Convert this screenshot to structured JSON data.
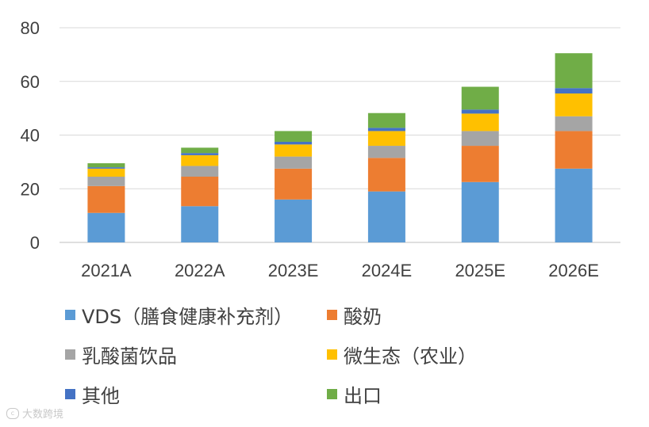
{
  "chart_data": {
    "type": "bar",
    "stacked": true,
    "categories": [
      "2021A",
      "2022A",
      "2023E",
      "2024E",
      "2025E",
      "2026E"
    ],
    "ylim": [
      0,
      80
    ],
    "yticks": [
      0,
      20,
      40,
      60,
      80
    ],
    "grid": true,
    "legend_position": "bottom",
    "series": [
      {
        "name": "VDS（膳食健康补充剂）",
        "color": "#5B9BD5",
        "values": [
          11,
          13.5,
          16,
          19,
          22.5,
          27.5
        ]
      },
      {
        "name": "酸奶",
        "color": "#ED7D31",
        "values": [
          10,
          11,
          11.5,
          12.5,
          13.5,
          14
        ]
      },
      {
        "name": "乳酸菌饮品",
        "color": "#A5A5A5",
        "values": [
          3.5,
          4,
          4.5,
          4.5,
          5.5,
          5.5
        ]
      },
      {
        "name": "微生态（农业）",
        "color": "#FFC000",
        "values": [
          3,
          4,
          4.5,
          5.5,
          6.5,
          8.5
        ]
      },
      {
        "name": "其他",
        "color": "#4472C4",
        "values": [
          0.5,
          0.8,
          1,
          1.2,
          1.5,
          2
        ]
      },
      {
        "name": "出口",
        "color": "#70AD47",
        "values": [
          1.5,
          2,
          4,
          5.5,
          8.5,
          13
        ]
      }
    ]
  },
  "watermark": {
    "text": "大数跨境",
    "icon": "logo-icon"
  }
}
